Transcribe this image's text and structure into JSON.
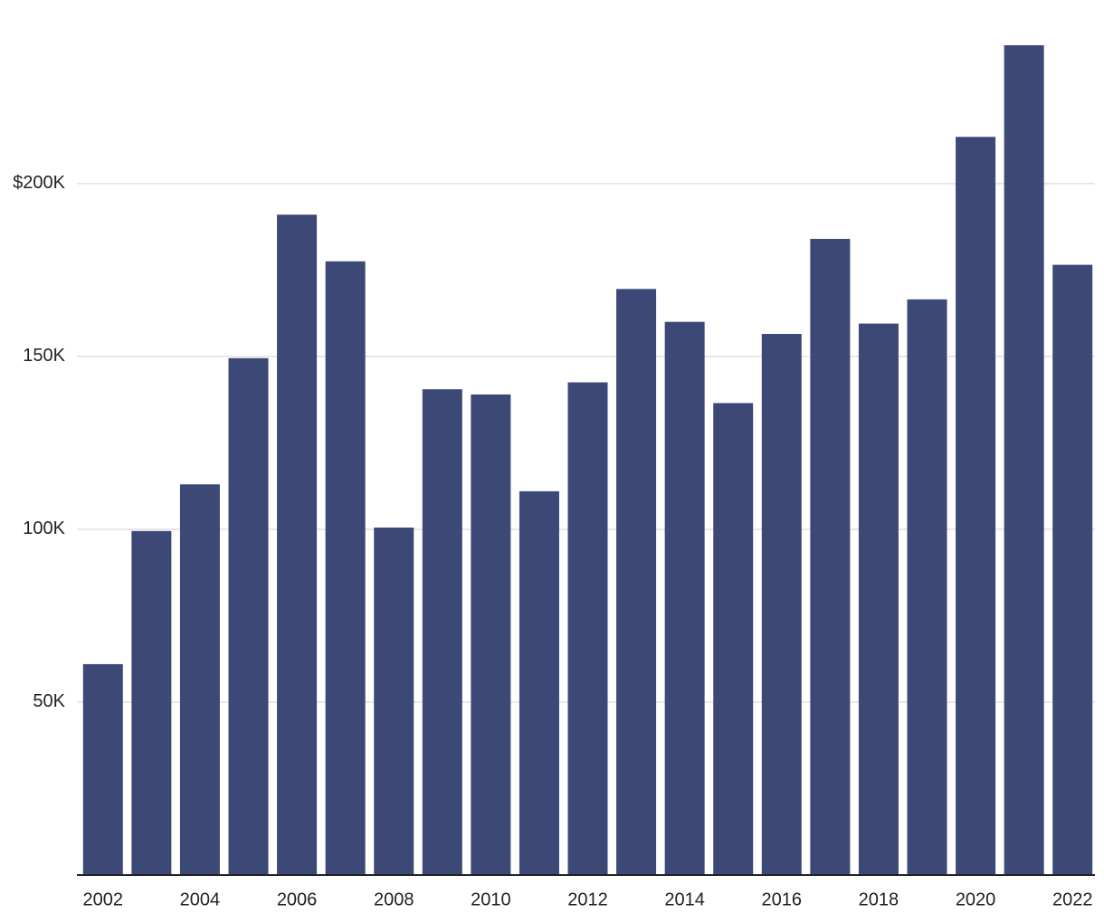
{
  "chart_data": {
    "type": "bar",
    "categories": [
      "2002",
      null,
      "2004",
      null,
      "2006",
      null,
      "2008",
      null,
      "2010",
      null,
      "2012",
      null,
      "2014",
      null,
      "2016",
      null,
      "2018",
      null,
      "2020",
      null,
      "2022"
    ],
    "values": [
      61000,
      99500,
      113000,
      149500,
      191000,
      177500,
      100500,
      140500,
      139000,
      111000,
      142500,
      169500,
      160000,
      136500,
      156500,
      184000,
      159500,
      166500,
      213500,
      240000,
      176500
    ],
    "color": "#3c4876",
    "ylim": [
      0,
      240000
    ],
    "yticks": [
      {
        "value": 50000,
        "label": "50K"
      },
      {
        "value": 100000,
        "label": "100K"
      },
      {
        "value": 150000,
        "label": "150K"
      },
      {
        "value": 200000,
        "label": "$200K"
      }
    ],
    "grid": true
  }
}
